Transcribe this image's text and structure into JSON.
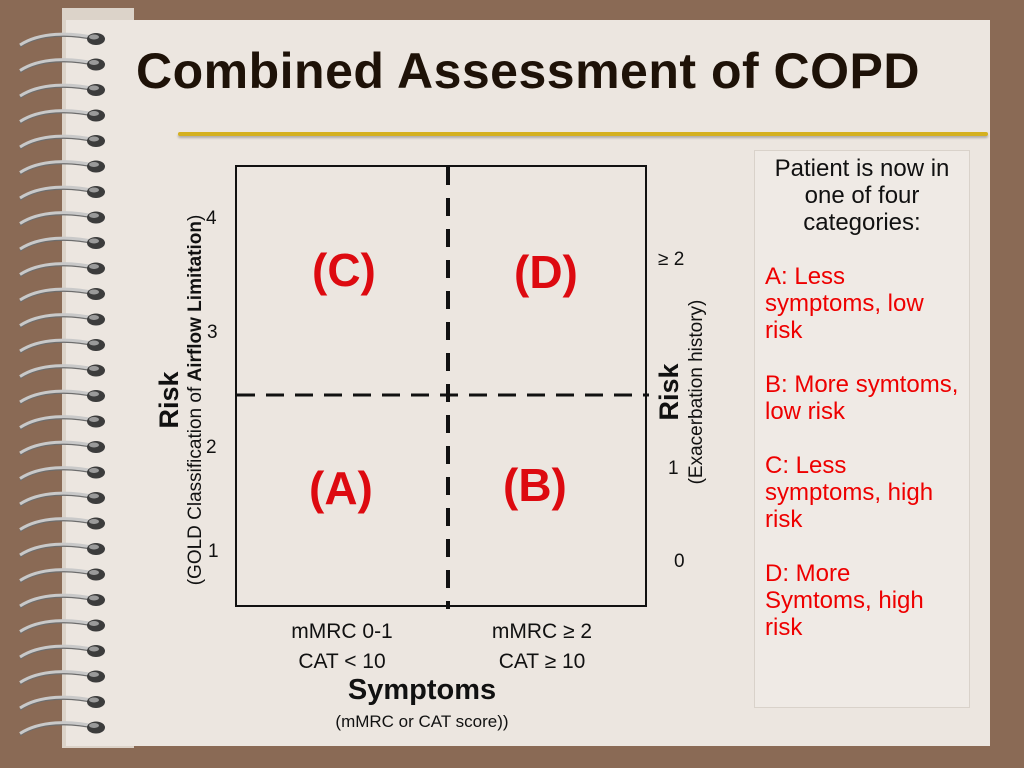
{
  "slide": {
    "title": "Combined Assessment of COPD",
    "colors": {
      "accent_rule": "#d4b020",
      "quadrant_label": "#dd0a10",
      "category_text": "#e00000"
    },
    "icons": [
      "spiral-binding-icon"
    ]
  },
  "diagram": {
    "quadrants": {
      "top_left": "(C)",
      "top_right": "(D)",
      "bottom_left": "(A)",
      "bottom_right": "(B)"
    },
    "left_axis": {
      "title": "Risk",
      "subtitle_prefix": "(GOLD Classification of ",
      "subtitle_bold": "Airflow Limitation",
      "subtitle_suffix": ")",
      "ticks": [
        "4",
        "3",
        "2",
        "1"
      ]
    },
    "right_axis": {
      "title": "Risk",
      "subtitle": "(Exacerbation history)",
      "ticks": [
        "≥ 2",
        "1",
        "0"
      ]
    },
    "bottom_axis": {
      "left_col": {
        "line1": "mMRC 0-1",
        "line2": "CAT < 10"
      },
      "right_col": {
        "line1": "mMRC ≥ 2",
        "line2": "CAT ≥ 10"
      },
      "title": "Symptoms",
      "subtitle": "(mMRC or CAT score))"
    }
  },
  "sidebar": {
    "intro": "Patient is now in one of four categories:",
    "categories": [
      "A:  Less symptoms, low risk",
      "B:  More symtoms, low risk",
      "C:  Less symptoms, high risk",
      "D:  More Symtoms, high risk"
    ]
  }
}
